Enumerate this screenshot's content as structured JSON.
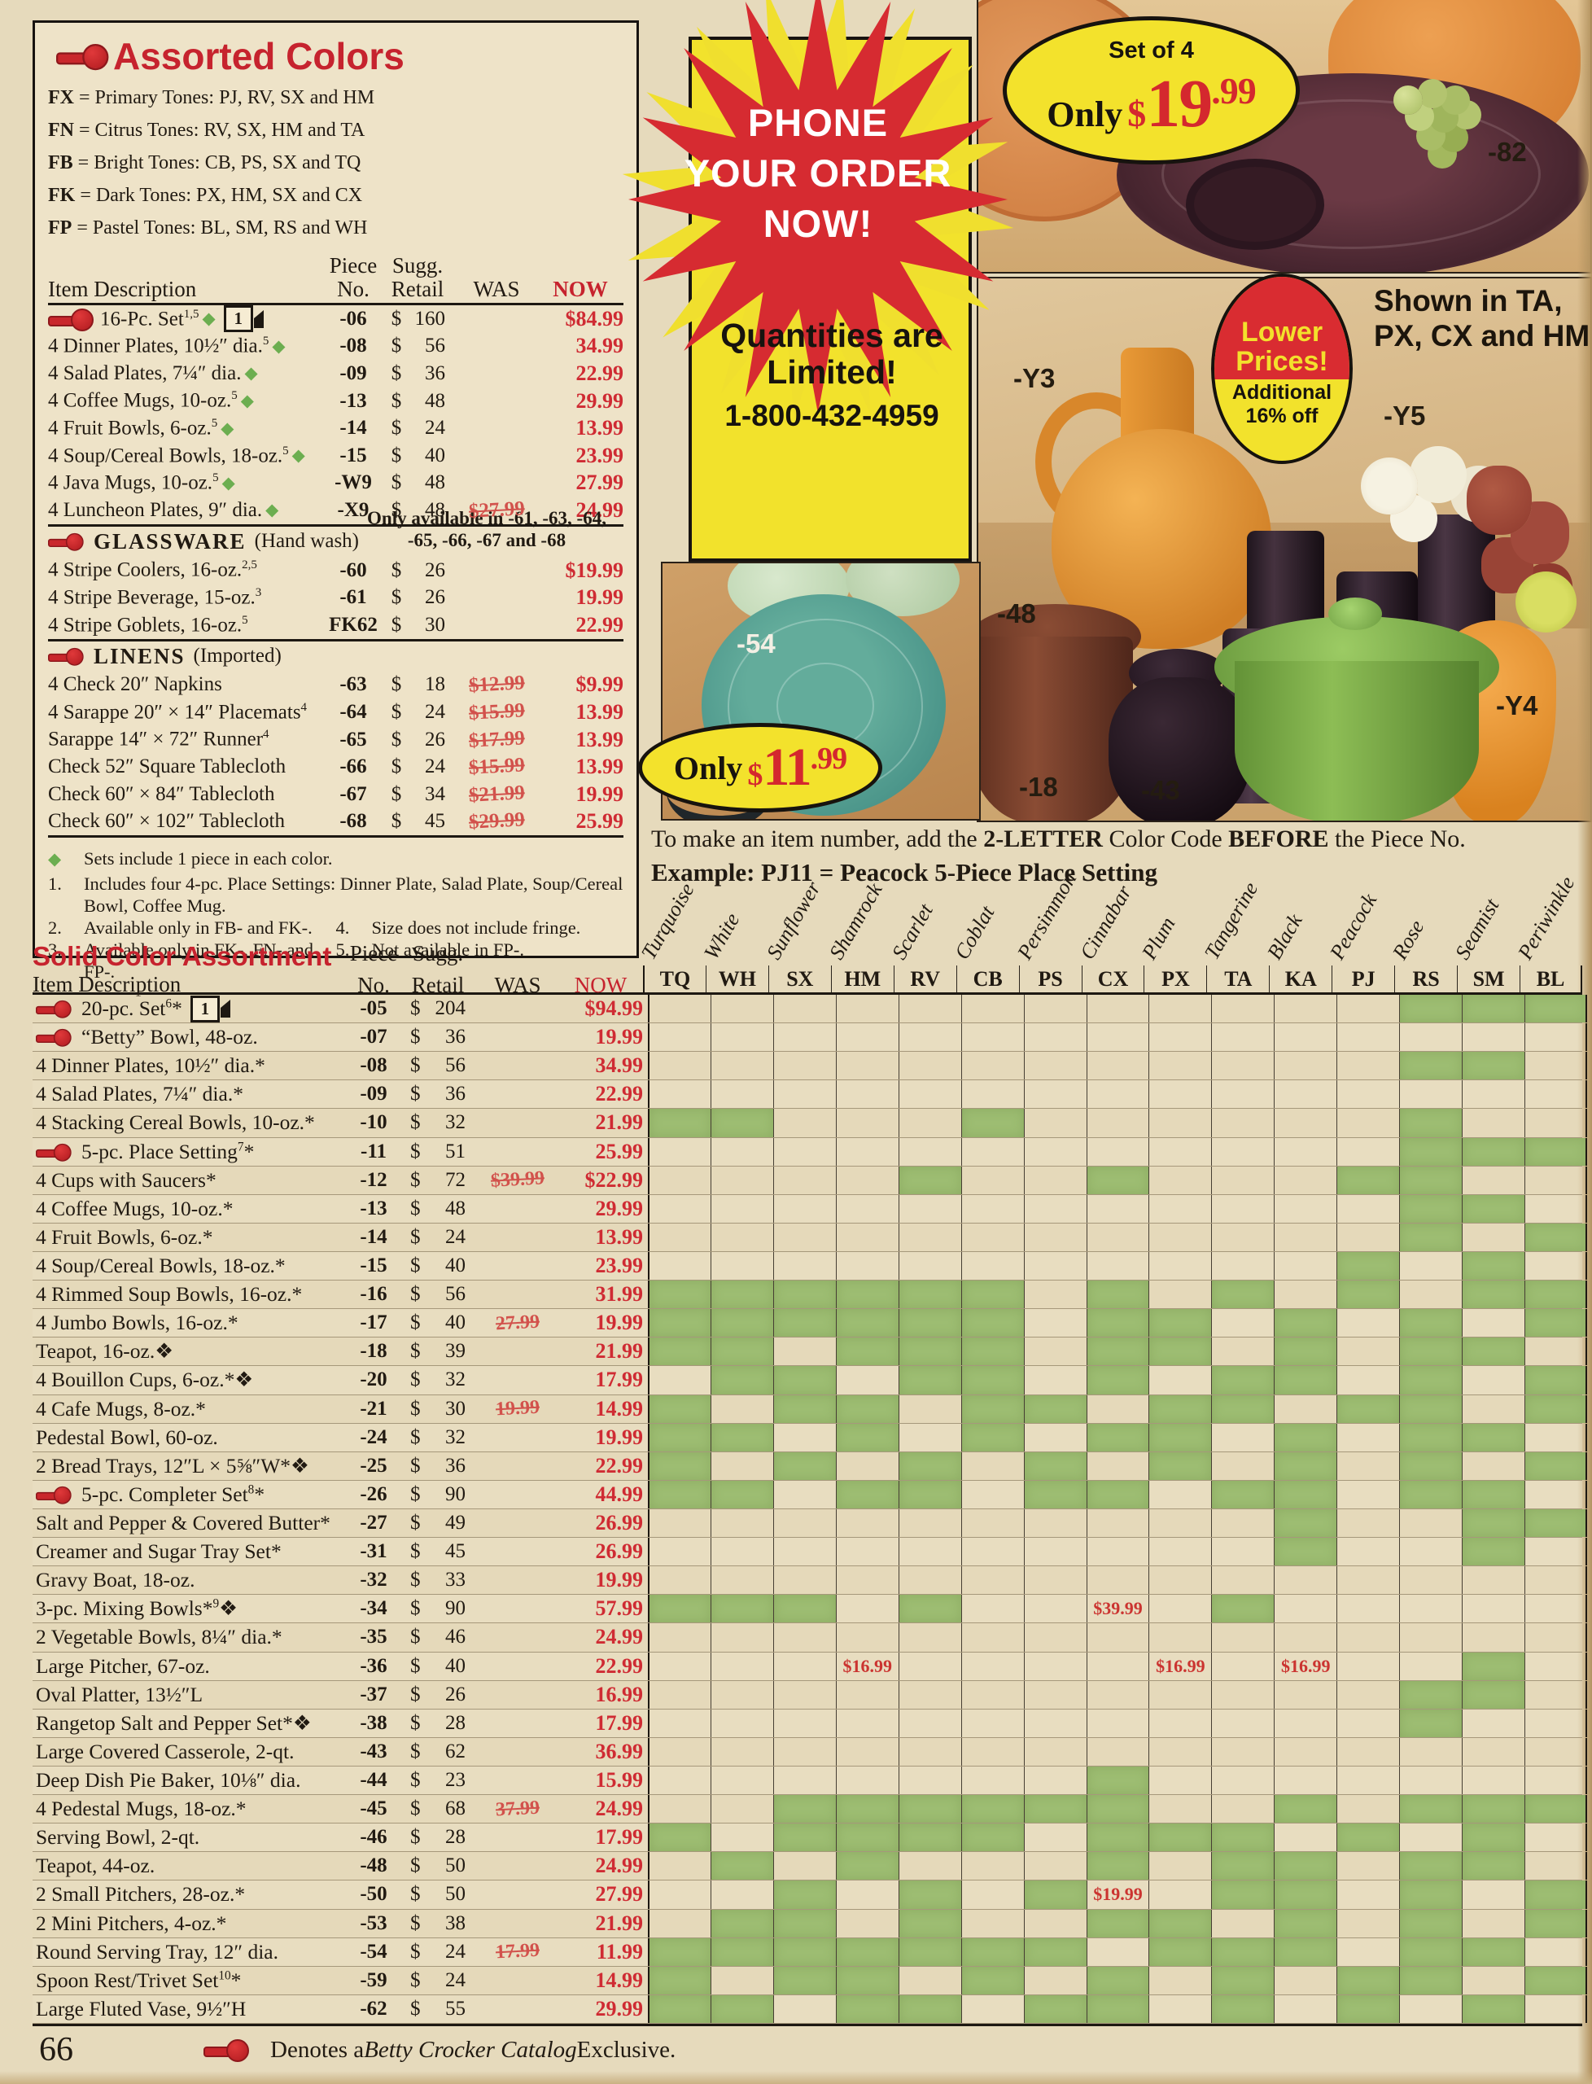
{
  "page": {
    "number": "66",
    "footer_pre": "Denotes a ",
    "footer_italic": "Betty Crocker Catalog",
    "footer_post": " Exclusive."
  },
  "header_labels": {
    "item": "Item Description",
    "piece1": "Piece",
    "piece2": "No.",
    "sugg1": "Sugg.",
    "sugg2": "Retail",
    "was": "WAS",
    "now": "NOW"
  },
  "assorted": {
    "title": "Assorted Colors",
    "codes": [
      {
        "code": "FX",
        "desc": "= Primary Tones: PJ, RV, SX and HM"
      },
      {
        "code": "FN",
        "desc": "= Citrus Tones: RV, SX, HM and TA"
      },
      {
        "code": "FB",
        "desc": "= Bright Tones: CB, PS, SX and TQ"
      },
      {
        "code": "FK",
        "desc": "= Dark Tones: PX, HM, SX and CX"
      },
      {
        "code": "FP",
        "desc": "= Pastel Tones: BL, SM, RS and WH"
      }
    ],
    "avail_note1": "Only available in -61, -63, -64,",
    "avail_note2": "-65, -66, -67 and -68",
    "rows": [
      {
        "spoon": 1,
        "truck": 1,
        "d": "16-Pc. Set",
        "sup": "1,5",
        "di": 1,
        "p": "-06",
        "r": "$160",
        "w": "",
        "n": "$84.99"
      },
      {
        "d": "4 Dinner Plates, 10½″ dia.",
        "sup": "5",
        "di": 1,
        "p": "-08",
        "r": "$ 56",
        "w": "",
        "n": "34.99"
      },
      {
        "d": "4 Salad Plates, 7¼″ dia.",
        "di": 1,
        "p": "-09",
        "r": "$ 36",
        "w": "",
        "n": "22.99"
      },
      {
        "d": "4 Coffee Mugs, 10-oz.",
        "sup": "5",
        "di": 1,
        "p": "-13",
        "r": "$ 48",
        "w": "",
        "n": "29.99"
      },
      {
        "d": "4 Fruit Bowls, 6-oz.",
        "sup": "5",
        "di": 1,
        "p": "-14",
        "r": "$ 24",
        "w": "",
        "n": "13.99"
      },
      {
        "d": "4 Soup/Cereal Bowls, 18-oz.",
        "sup": "5",
        "di": 1,
        "p": "-15",
        "r": "$ 40",
        "w": "",
        "n": "23.99"
      },
      {
        "d": "4 Java Mugs, 10-oz.",
        "sup": "5",
        "di": 1,
        "p": "-W9",
        "r": "$ 48",
        "w": "",
        "n": "27.99"
      },
      {
        "d": "4 Luncheon Plates, 9″ dia.",
        "di": 1,
        "p": "-X9",
        "r": "$ 48",
        "w": "$27.99",
        "n": "24.99"
      },
      {
        "sec": "GLASSWARE",
        "note": "(Hand wash)"
      },
      {
        "d": "4 Stripe Coolers, 16-oz.",
        "sup": "2,5",
        "p": "-60",
        "r": "$ 26",
        "w": "",
        "n": "$19.99"
      },
      {
        "d": "4 Stripe Beverage, 15-oz.",
        "sup": "3",
        "p": "-61",
        "r": "$ 26",
        "w": "",
        "n": "19.99"
      },
      {
        "d": "4 Stripe Goblets, 16-oz.",
        "sup": "5",
        "p": "FK62",
        "r": "$ 30",
        "w": "",
        "n": "22.99"
      },
      {
        "sec": "LINENS",
        "note": "(Imported)"
      },
      {
        "d": "4 Check 20″ Napkins",
        "p": "-63",
        "r": "$ 18",
        "w": "$12.99",
        "n": "$9.99"
      },
      {
        "d": "4 Sarappe 20″ × 14″ Placemats",
        "sup": "4",
        "p": "-64",
        "r": "$ 24",
        "w": "$15.99",
        "n": "13.99"
      },
      {
        "d": "Sarappe 14″ × 72″ Runner",
        "sup": "4",
        "p": "-65",
        "r": "$ 26",
        "w": "$17.99",
        "n": "13.99"
      },
      {
        "d": "Check 52″ Square Tablecloth",
        "p": "-66",
        "r": "$ 24",
        "w": "$15.99",
        "n": "13.99"
      },
      {
        "d": "Check 60″ × 84″ Tablecloth",
        "p": "-67",
        "r": "$ 34",
        "w": "$21.99",
        "n": "19.99"
      },
      {
        "d": "Check 60″ × 102″ Tablecloth",
        "p": "-68",
        "r": "$ 45",
        "w": "$29.99",
        "n": "25.99"
      }
    ],
    "footnotes": {
      "diamond": "Sets include 1 piece in each color.",
      "n1_mark": "1.",
      "n1": "Includes four 4-pc. Place Settings: Dinner Plate, Salad Plate, Soup/Cereal Bowl, Coffee Mug.",
      "pairs": [
        {
          "lm": "2.",
          "lt": "Available only in FB- and FK-.",
          "rm": "4.",
          "rt": "Size does not include fringe."
        },
        {
          "lm": "3.",
          "lt": "Available only in FK-, FN- and FP-.",
          "rm": "5.",
          "rt": "Not available in FP-."
        }
      ]
    }
  },
  "promo": {
    "l1": "PHONE",
    "l2": "YOUR ORDER",
    "l3": "NOW!",
    "q1": "Quantities are",
    "q2": "Limited!",
    "phone": "1-800-432-4959"
  },
  "badges": {
    "set_of_4": "Set of 4",
    "only_a": "Only",
    "p1999_cur": "$",
    "p1999_int": "19",
    "p1999_dec": ".99",
    "only_b": "Only",
    "p1199_cur": "$",
    "p1199_int": "11",
    "p1199_dec": ".99",
    "lower1": "Lower",
    "lower2": "Prices!",
    "add1": "Additional",
    "add2": "16% off"
  },
  "photos": {
    "shown1": "Shown in TA,",
    "shown2": "PX, CX and HM",
    "l82": "-82",
    "y3": "-Y3",
    "y5": "-Y5",
    "l48": "-48",
    "l18": "-18",
    "l43": "-43",
    "y4": "-Y4",
    "l54": "-54"
  },
  "ordering_note": {
    "p1": "To make an item number, add the ",
    "b1": "2-LETTER",
    "p2": " Color Code ",
    "b2": "BEFORE",
    "p3": " the Piece No.",
    "line2": "Example: PJ11 = Peacock 5-Piece Place Setting"
  },
  "solid": {
    "title": "Solid Color Assortment",
    "colors": [
      {
        "name": "Turquoise",
        "code": "TQ"
      },
      {
        "name": "White",
        "code": "WH"
      },
      {
        "name": "Sunflower",
        "code": "SX"
      },
      {
        "name": "Shamrock",
        "code": "HM"
      },
      {
        "name": "Scarlet",
        "code": "RV"
      },
      {
        "name": "Coblat",
        "code": "CB"
      },
      {
        "name": "Persimmon",
        "code": "PS"
      },
      {
        "name": "Cinnabar",
        "code": "CX"
      },
      {
        "name": "Plum",
        "code": "PX"
      },
      {
        "name": "Tangerine",
        "code": "TA"
      },
      {
        "name": "Black",
        "code": "KA"
      },
      {
        "name": "Peacock",
        "code": "PJ"
      },
      {
        "name": "Rose",
        "code": "RS"
      },
      {
        "name": "Seamist",
        "code": "SM"
      },
      {
        "name": "Periwinkle",
        "code": "BL"
      }
    ],
    "rows": [
      {
        "spoon": 1,
        "truck": 1,
        "d": "20-pc. Set",
        "sup": "6",
        "tail": "*",
        "p": "-05",
        "r": "$204",
        "w": "",
        "n": "$94.99",
        "a": "000000000000111"
      },
      {
        "spoon": 1,
        "d": "“Betty” Bowl, 48-oz.",
        "p": "-07",
        "r": "$ 36",
        "w": "",
        "n": "19.99",
        "a": "000000000000000"
      },
      {
        "d": "4 Dinner Plates, 10½″ dia.",
        "tail": "*",
        "p": "-08",
        "r": "$ 56",
        "w": "",
        "n": "34.99",
        "a": "000000000000110"
      },
      {
        "d": "4 Salad Plates, 7¼″ dia.",
        "tail": "*",
        "p": "-09",
        "r": "$ 36",
        "w": "",
        "n": "22.99",
        "a": "000000000000000"
      },
      {
        "d": "4 Stacking Cereal Bowls, 10-oz.",
        "tail": "*",
        "p": "-10",
        "r": "$ 32",
        "w": "",
        "n": "21.99",
        "a": "110001000000100"
      },
      {
        "spoon": 1,
        "d": "5-pc. Place Setting",
        "sup": "7",
        "tail": "*",
        "p": "-11",
        "r": "$ 51",
        "w": "",
        "n": "25.99",
        "a": "000000000000111"
      },
      {
        "d": "4 Cups with Saucers",
        "tail": "*",
        "p": "-12",
        "r": "$ 72",
        "w": "$39.99",
        "n": "$22.99",
        "a": "000010010001100"
      },
      {
        "d": "4 Coffee Mugs, 10-oz.",
        "tail": "*",
        "p": "-13",
        "r": "$ 48",
        "w": "",
        "n": "29.99",
        "a": "000000000000110"
      },
      {
        "d": "4 Fruit Bowls, 6-oz.",
        "tail": "*",
        "p": "-14",
        "r": "$ 24",
        "w": "",
        "n": "13.99",
        "a": "000000000000101"
      },
      {
        "d": "4 Soup/Cereal Bowls, 18-oz.",
        "tail": "*",
        "p": "-15",
        "r": "$ 40",
        "w": "",
        "n": "23.99",
        "a": "000000000001010"
      },
      {
        "d": "4 Rimmed Soup Bowls, 16-oz.",
        "tail": "*",
        "p": "-16",
        "r": "$ 56",
        "w": "",
        "n": "31.99",
        "a": "111111010101011"
      },
      {
        "d": "4 Jumbo Bowls, 16-oz.",
        "tail": "*",
        "p": "-17",
        "r": "$ 40",
        "w": "27.99",
        "n": "19.99",
        "a": "111111011010101"
      },
      {
        "d": "Teapot, 16-oz.",
        "tail": "❖",
        "p": "-18",
        "r": "$ 39",
        "w": "",
        "n": "21.99",
        "a": "110111011010110"
      },
      {
        "d": "4 Bouillon Cups, 6-oz.",
        "tail": "*❖",
        "p": "-20",
        "r": "$ 32",
        "w": "",
        "n": "17.99",
        "a": "011011010110101"
      },
      {
        "d": "4 Cafe Mugs, 8-oz.",
        "tail": "*",
        "p": "-21",
        "r": "$ 30",
        "w": "19.99",
        "n": "14.99",
        "a": "101101101101101"
      },
      {
        "d": "Pedestal Bowl, 60-oz.",
        "p": "-24",
        "r": "$ 32",
        "w": "",
        "n": "19.99",
        "a": "110101011010110"
      },
      {
        "d": "2 Bread Trays, 12″L × 5⅝″W",
        "tail": "*❖",
        "p": "-25",
        "r": "$ 36",
        "w": "",
        "n": "22.99",
        "a": "101010101010101"
      },
      {
        "spoon": 1,
        "d": "5-pc. Completer Set",
        "sup": "8",
        "tail": "*",
        "p": "-26",
        "r": "$ 90",
        "w": "",
        "n": "44.99",
        "a": "110110110110110"
      },
      {
        "d": "Salt and Pepper & Covered Butter",
        "tail": "*",
        "p": "-27",
        "r": "$ 49",
        "w": "",
        "n": "26.99",
        "a": "000000000010011"
      },
      {
        "d": "Creamer and Sugar Tray Set",
        "tail": "*",
        "p": "-31",
        "r": "$ 45",
        "w": "",
        "n": "26.99",
        "a": "000000000010010"
      },
      {
        "d": "Gravy Boat, 18-oz.",
        "p": "-32",
        "r": "$ 33",
        "w": "",
        "n": "19.99",
        "a": "000000000000000"
      },
      {
        "d": "3-pc. Mixing Bowls*",
        "sup": "9",
        "tail": "❖",
        "p": "-34",
        "r": "$ 90",
        "w": "",
        "n": "57.99",
        "a": "111010000100000",
        "sp": {
          "CX": "$39.99"
        }
      },
      {
        "d": "2 Vegetable Bowls, 8¼″ dia.",
        "tail": "*",
        "p": "-35",
        "r": "$ 46",
        "w": "",
        "n": "24.99",
        "a": "000000000000000"
      },
      {
        "d": "Large Pitcher, 67-oz.",
        "p": "-36",
        "r": "$ 40",
        "w": "",
        "n": "22.99",
        "a": "000000000000010",
        "sp": {
          "HM": "$16.99",
          "PX": "$16.99",
          "KA": "$16.99"
        }
      },
      {
        "d": "Oval Platter, 13½″L",
        "p": "-37",
        "r": "$ 26",
        "w": "",
        "n": "16.99",
        "a": "000000000000110"
      },
      {
        "d": "Rangetop Salt and Pepper Set",
        "tail": "*❖",
        "p": "-38",
        "r": "$ 28",
        "w": "",
        "n": "17.99",
        "a": "000000000000100"
      },
      {
        "d": "Large Covered Casserole, 2-qt.",
        "p": "-43",
        "r": "$ 62",
        "w": "",
        "n": "36.99",
        "a": "000000000000000"
      },
      {
        "d": "Deep Dish Pie Baker, 10⅛″ dia.",
        "p": "-44",
        "r": "$ 23",
        "w": "",
        "n": "15.99",
        "a": "000000010000000"
      },
      {
        "d": "4 Pedestal Mugs, 18-oz.",
        "tail": "*",
        "p": "-45",
        "r": "$ 68",
        "w": "37.99",
        "n": "24.99",
        "a": "001111110010111"
      },
      {
        "d": "Serving Bowl, 2-qt.",
        "p": "-46",
        "r": "$ 28",
        "w": "",
        "n": "17.99",
        "a": "101111011101010"
      },
      {
        "d": "Teapot, 44-oz.",
        "p": "-48",
        "r": "$ 50",
        "w": "",
        "n": "24.99",
        "a": "010100010110110"
      },
      {
        "d": "2 Small Pitchers, 28-oz.",
        "tail": "*",
        "p": "-50",
        "r": "$ 50",
        "w": "",
        "n": "27.99",
        "a": "001010100110101",
        "sp": {
          "CX": "$19.99"
        }
      },
      {
        "d": "2 Mini Pitchers, 4-oz.",
        "tail": "*",
        "p": "-53",
        "r": "$ 38",
        "w": "",
        "n": "21.99",
        "a": "011010011010101"
      },
      {
        "d": "Round Serving Tray, 12″ dia.",
        "p": "-54",
        "r": "$ 24",
        "w": "17.99",
        "n": "11.99",
        "a": "111111101110110"
      },
      {
        "d": "Spoon Rest/Trivet Set",
        "sup": "10",
        "tail": "*",
        "p": "-59",
        "r": "$ 24",
        "w": "",
        "n": "14.99",
        "a": "101101010101101"
      },
      {
        "d": "Large Fluted Vase, 9½″H",
        "p": "-62",
        "r": "$ 55",
        "w": "",
        "n": "29.99",
        "a": "110110110101010"
      }
    ]
  }
}
